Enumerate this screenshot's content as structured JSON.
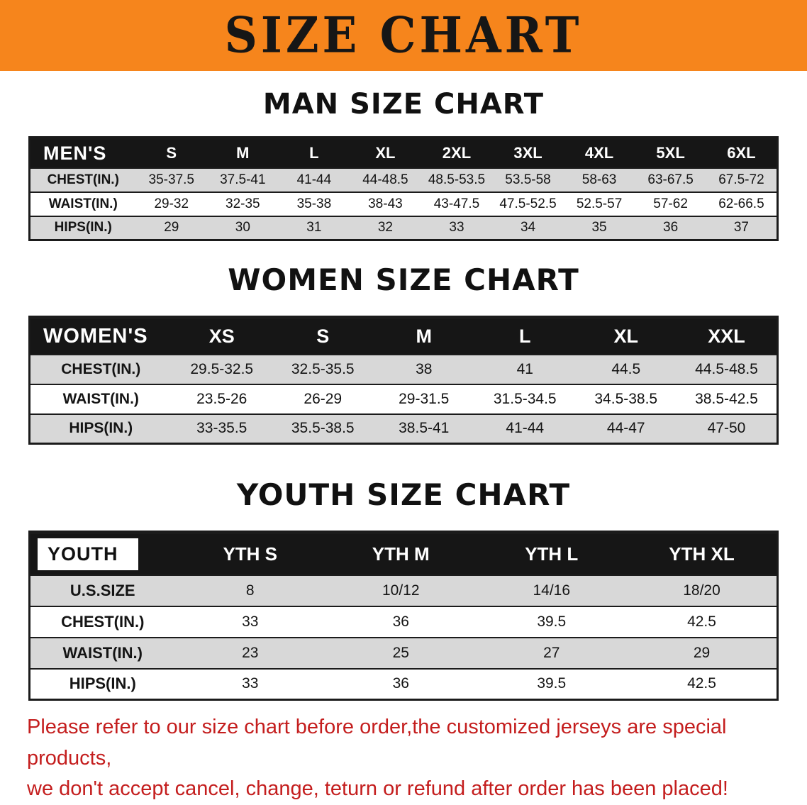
{
  "banner": {
    "title": "SIZE CHART"
  },
  "colors": {
    "banner_bg": "#F6851C",
    "banner_text": "#161616",
    "table_header_bg": "#161616",
    "table_header_text": "#FFFFFF",
    "row_shade": "#D8D8D8",
    "border_dark": "#1B1B1B",
    "note_red": "#C41E1E"
  },
  "sections": [
    {
      "heading": "MAN SIZE CHART",
      "table": {
        "corner_label": "MEN'S",
        "corner_style": "dark",
        "columns": [
          "S",
          "M",
          "L",
          "XL",
          "2XL",
          "3XL",
          "4XL",
          "5XL",
          "6XL"
        ],
        "rows": [
          {
            "label": "CHEST(IN.)",
            "values": [
              "35-37.5",
              "37.5-41",
              "41-44",
              "44-48.5",
              "48.5-53.5",
              "53.5-58",
              "58-63",
              "63-67.5",
              "67.5-72"
            ]
          },
          {
            "label": "WAIST(IN.)",
            "values": [
              "29-32",
              "32-35",
              "35-38",
              "38-43",
              "43-47.5",
              "47.5-52.5",
              "52.5-57",
              "57-62",
              "62-66.5"
            ]
          },
          {
            "label": "HIPS(IN.)",
            "values": [
              "29",
              "30",
              "31",
              "32",
              "33",
              "34",
              "35",
              "36",
              "37"
            ]
          }
        ]
      }
    },
    {
      "heading": "WOMEN SIZE CHART",
      "table": {
        "corner_label": "WOMEN'S",
        "corner_style": "dark",
        "columns": [
          "XS",
          "S",
          "M",
          "L",
          "XL",
          "XXL"
        ],
        "rows": [
          {
            "label": "CHEST(IN.)",
            "values": [
              "29.5-32.5",
              "32.5-35.5",
              "38",
              "41",
              "44.5",
              "44.5-48.5"
            ]
          },
          {
            "label": "WAIST(IN.)",
            "values": [
              "23.5-26",
              "26-29",
              "29-31.5",
              "31.5-34.5",
              "34.5-38.5",
              "38.5-42.5"
            ]
          },
          {
            "label": "HIPS(IN.)",
            "values": [
              "33-35.5",
              "35.5-38.5",
              "38.5-41",
              "41-44",
              "44-47",
              "47-50"
            ]
          }
        ]
      }
    },
    {
      "heading": "YOUTH SIZE CHART",
      "table": {
        "corner_label": "YOUTH",
        "corner_style": "light",
        "columns": [
          "YTH S",
          "YTH M",
          "YTH L",
          "YTH XL"
        ],
        "rows": [
          {
            "label": "U.S.SIZE",
            "values": [
              "8",
              "10/12",
              "14/16",
              "18/20"
            ]
          },
          {
            "label": "CHEST(IN.)",
            "values": [
              "33",
              "36",
              "39.5",
              "42.5"
            ]
          },
          {
            "label": "WAIST(IN.)",
            "values": [
              "23",
              "25",
              "27",
              "29"
            ]
          },
          {
            "label": "HIPS(IN.)",
            "values": [
              "33",
              "36",
              "39.5",
              "42.5"
            ]
          }
        ]
      }
    }
  ],
  "footer": {
    "line1": "Please refer to our size chart before order,the customized jerseys are special products,",
    "line2": "we don't accept cancel, change, teturn or refund after order has been placed!"
  }
}
